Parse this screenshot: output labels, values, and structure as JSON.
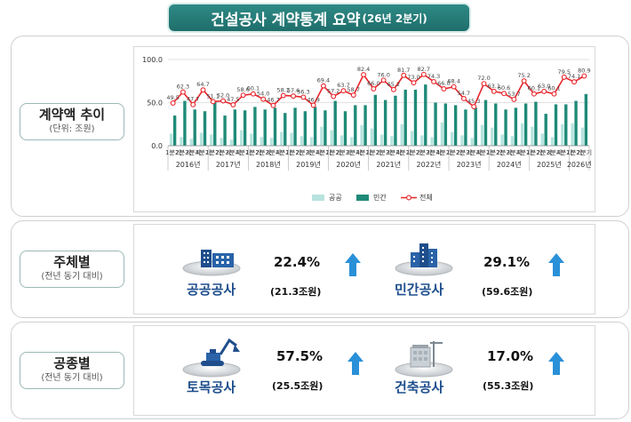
{
  "header": {
    "title": "건설공사 계약통계 요약",
    "subtitle": "(26년 2분기)"
  },
  "sections": {
    "trend": {
      "label": "계약액 추이",
      "unit": "(단위: 조원)"
    },
    "by_subject": {
      "label": "주체별",
      "sub": "(전년 동기 대비)"
    },
    "by_type": {
      "label": "공종별",
      "sub": "(전년 동기 대비)"
    }
  },
  "stats": {
    "public": {
      "name": "공공공사",
      "pct": "22.4%",
      "amount": "(21.3조원)"
    },
    "private": {
      "name": "민간공사",
      "pct": "29.1%",
      "amount": "(59.6조원)"
    },
    "civil": {
      "name": "토목공사",
      "pct": "57.5%",
      "amount": "(25.5조원)"
    },
    "building": {
      "name": "건축공사",
      "pct": "17.0%",
      "amount": "(55.3조원)"
    }
  },
  "colors": {
    "public": "#b8e3de",
    "private": "#1f8a78",
    "total": "#e8252b",
    "arrow": "#2a90d8",
    "teal": "#1f6e6b"
  },
  "chart_data": {
    "type": "bar+line",
    "ylim": [
      0,
      100
    ],
    "yticks": [
      "0.0",
      "50.0",
      "100.0"
    ],
    "quarters": [
      "1분기",
      "2분기",
      "3분기",
      "4분기"
    ],
    "year_labels": [
      "2016년",
      "2017년",
      "2018년",
      "2019년",
      "2020년",
      "2021년",
      "2022년",
      "2023년",
      "2024년",
      "2025년",
      "2026년"
    ],
    "series": [
      {
        "name": "공공",
        "values": [
          14,
          10,
          8,
          15,
          13,
          9,
          7,
          18,
          14,
          10,
          9,
          16,
          15,
          11,
          10,
          22,
          18,
          12,
          10,
          24,
          20,
          13,
          11,
          25,
          17,
          12,
          10,
          27,
          16,
          12,
          9,
          24,
          21,
          13,
          11,
          26,
          22,
          14,
          10,
          25,
          26,
          21
        ]
      },
      {
        "name": "민간",
        "values": [
          35,
          52,
          42,
          40,
          51,
          35,
          42,
          41,
          45,
          42,
          44,
          38,
          44,
          40,
          45,
          41,
          52,
          40,
          47,
          47,
          59,
          53,
          58,
          65,
          65,
          71,
          50,
          49,
          47,
          42,
          44,
          53,
          49,
          42,
          44,
          49,
          51,
          37,
          48,
          48,
          52,
          60
        ]
      },
      {
        "name": "전체",
        "values": [
          49.5,
          62.3,
          47.7,
          64.7,
          51.1,
          52.0,
          47.5,
          58.6,
          60.1,
          54.0,
          46.7,
          58.2,
          57.6,
          56.3,
          46.9,
          69.4,
          57.2,
          63.7,
          58.7,
          82.4,
          66.0,
          76.0,
          65.2,
          81.7,
          73.0,
          82.7,
          74.3,
          66.0,
          68.4,
          54.7,
          45.3,
          72.0,
          63.1,
          60.6,
          53.7,
          75.2,
          60.1,
          63.0,
          60.1,
          79.5,
          74.1,
          80.9
        ]
      }
    ],
    "data_labels": [
      "49.5",
      "62.3",
      "47.7",
      "64.7",
      "51.1",
      "52.0",
      "47.5",
      "58.6",
      "60.1",
      "54.0",
      "46.7",
      "58.2",
      "57.6",
      "56.3",
      "46.9",
      "69.4",
      "57.2",
      "63.7",
      "58.7",
      "82.4",
      "66.0",
      "76.0",
      "65.2",
      "81.7",
      "73.0",
      "82.7",
      "74.3",
      "66.0",
      "68.4",
      "54.7",
      "45.3",
      "72.0",
      "63.1",
      "60.6",
      "53.7",
      "75.2",
      "60.1",
      "63.0",
      "60.1",
      "79.5",
      "74.1",
      "80.9"
    ],
    "legend": [
      "공공",
      "민간",
      "전체"
    ],
    "legend_position": "bottom"
  }
}
